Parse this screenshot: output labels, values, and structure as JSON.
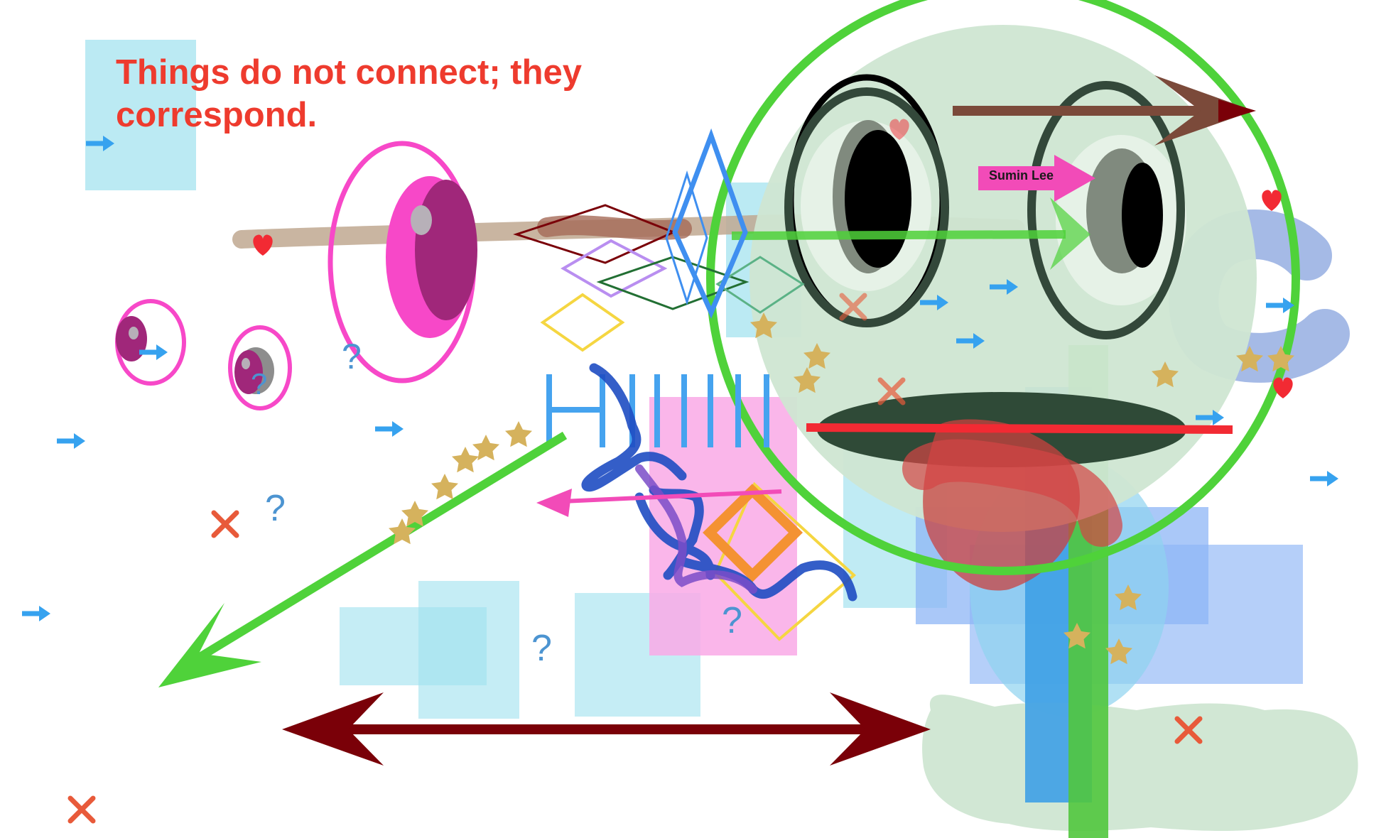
{
  "quote": "Things do not connect; they correspond.",
  "name_label": "Sumin Lee",
  "colors": {
    "quote": "#ee3b2e",
    "face_ring": "#4fd23a",
    "face_fill": "#cfe6d2",
    "pink_eye": "#f748c8",
    "dark_arrow": "#7a0008",
    "brown_arrow": "#7b4a3a",
    "tag_pink": "#f24bb8",
    "cyan_block": "#9ee1ee",
    "blue_block": "#8db6f6",
    "star_gold": "#d5b25d",
    "x_red": "#e85a3a",
    "mini_arrow_blue": "#36a2ef"
  }
}
